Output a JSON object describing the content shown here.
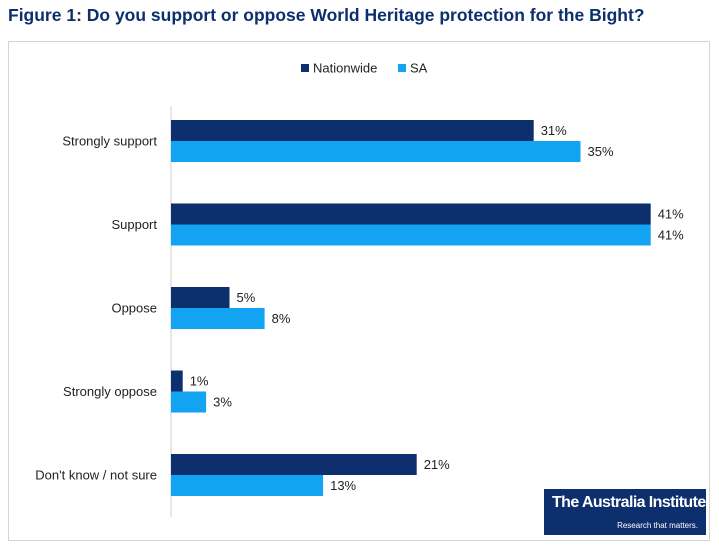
{
  "title": "Figure 1: Do you support or oppose World Heritage protection for the Bight?",
  "logo": {
    "name": "The Australia Institute",
    "tagline": "Research that matters."
  },
  "colors": {
    "nationwide": "#0d2f6e",
    "sa": "#12a3f2",
    "title": "#0d2f6e"
  },
  "chart_data": {
    "type": "bar",
    "orientation": "horizontal",
    "categories": [
      "Strongly support",
      "Support",
      "Oppose",
      "Strongly oppose",
      "Don't know / not sure"
    ],
    "series": [
      {
        "name": "Nationwide",
        "values": [
          31,
          41,
          5,
          1,
          21
        ]
      },
      {
        "name": "SA",
        "values": [
          35,
          41,
          8,
          3,
          13
        ]
      }
    ],
    "value_suffix": "%",
    "xlim": [
      0,
      45
    ],
    "grid": false,
    "legend": "top-center"
  }
}
